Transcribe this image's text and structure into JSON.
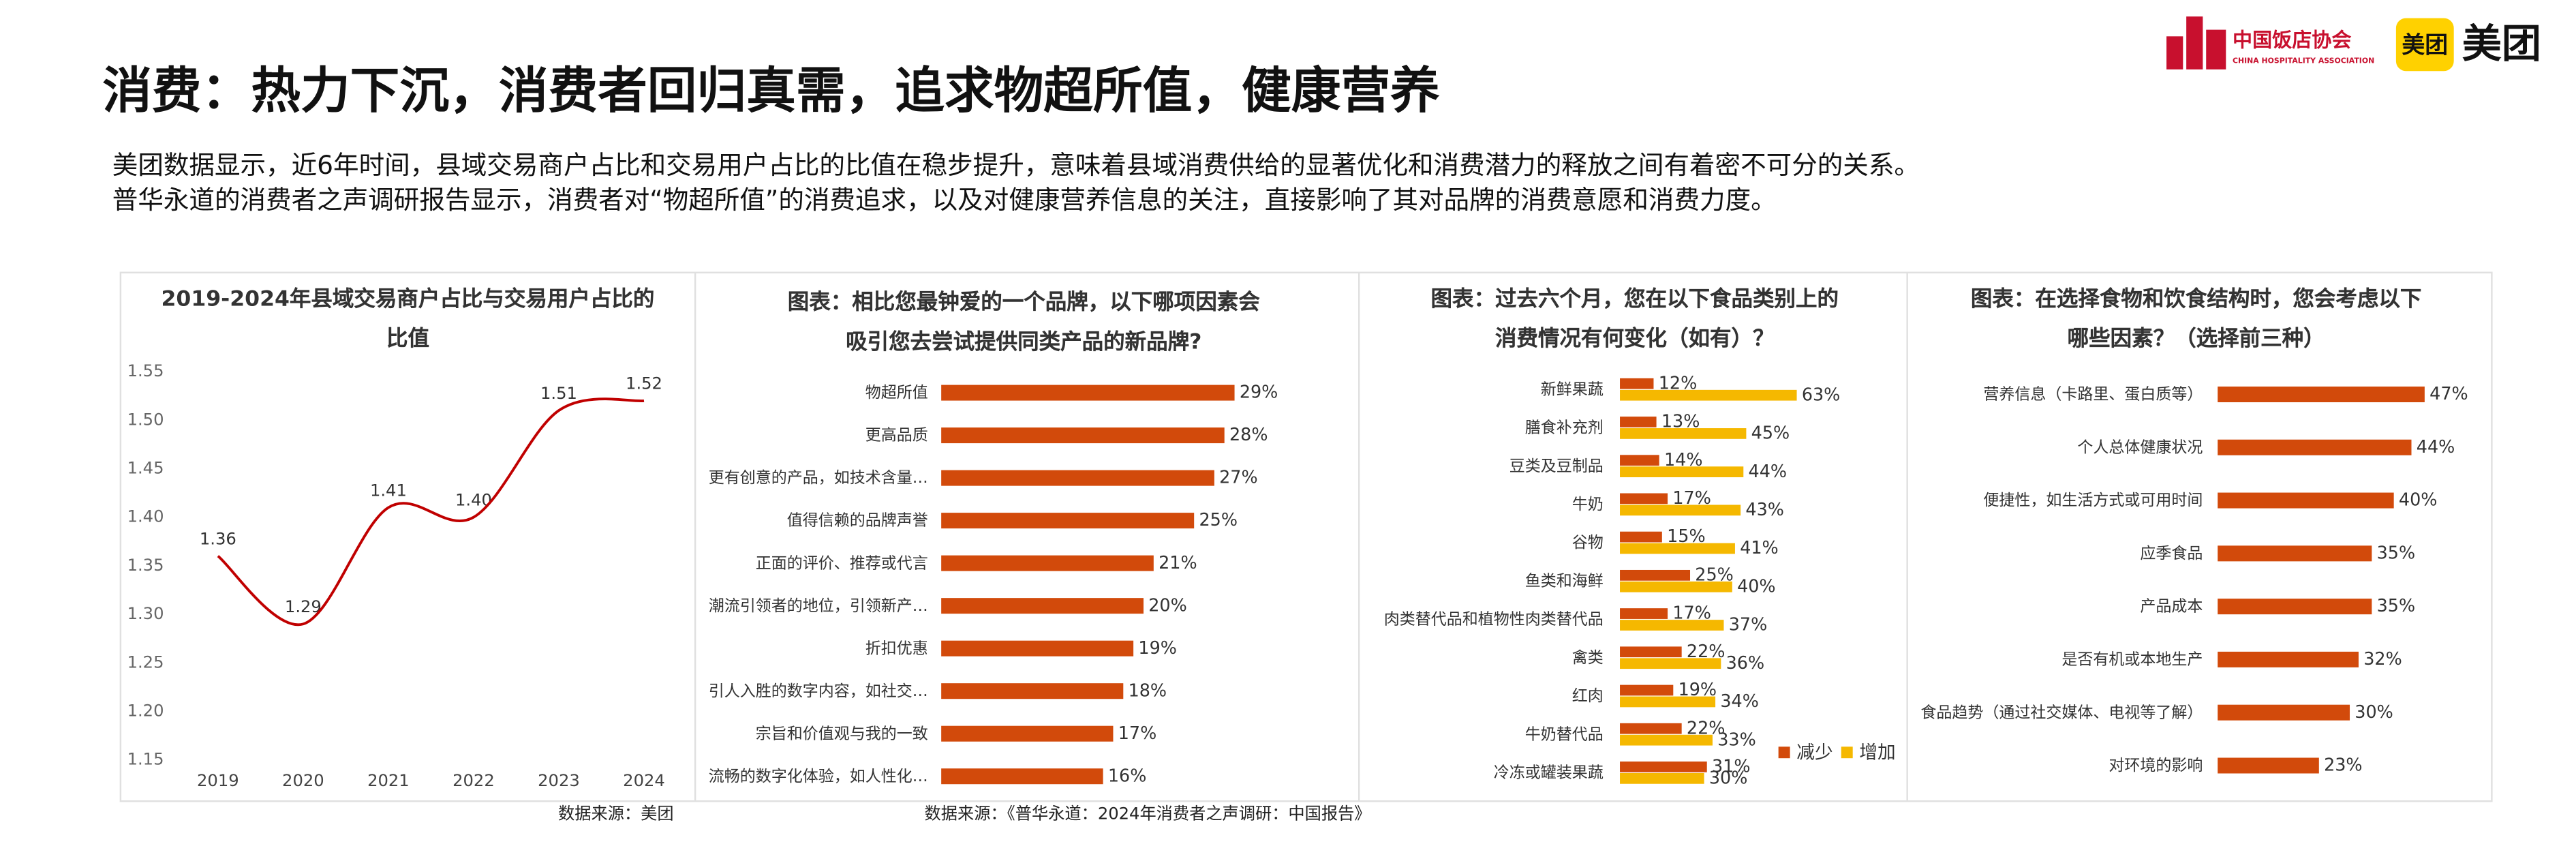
{
  "header": {
    "title": "消费：热力下沉，消费者回归真需，追求物超所值，健康营养",
    "lines": [
      "美团数据显示，近6年时间，县域交易商户占比和交易用户占比的比值在稳步提升，意味着县域消费供给的显著优化和消费潜力的释放之间有着密不可分的关系。",
      "普华永道的消费者之声调研报告显示，消费者对“物超所值”的消费追求，以及对健康营养信息的关注，直接影响了其对品牌的消费意愿和消费力度。"
    ],
    "logo_cn": "中国饭店协会",
    "logo_en": "CHINA HOSPITALITY ASSOCIATION",
    "meituan_badge": "美团",
    "meituan": "美团"
  },
  "chart_data": [
    {
      "type": "line",
      "title": "2019-2024年县域交易商户占比与交易用户占比的比值",
      "categories": [
        "2019",
        "2020",
        "2021",
        "2022",
        "2023",
        "2024"
      ],
      "values": [
        1.36,
        1.29,
        1.41,
        1.4,
        1.51,
        1.52
      ],
      "value_labels": [
        "1.36",
        "1.29",
        "1.41",
        "1.40",
        "1.51",
        "1.52"
      ],
      "color": "#c00000",
      "ylim": [
        1.15,
        1.55
      ],
      "yticks": [
        1.15,
        {
          "value": 1.2,
          "label": "1.20"
        },
        1.25,
        {
          "value": 1.3,
          "label": "1.30"
        },
        1.35,
        {
          "value": 1.4,
          "label": "1.40"
        },
        1.45,
        {
          "value": 1.5,
          "label": "1.50"
        },
        1.55
      ],
      "source": "数据来源：美团"
    },
    {
      "type": "bar",
      "orientation": "horizontal",
      "title": "图表：相比您最钟爱的一个品牌，以下哪项因素会吸引您去尝试提供同类产品的新品牌?",
      "categories": [
        "物超所值",
        "更高品质",
        "更有创意的产品，如技术含量…",
        "值得信赖的品牌声誉",
        "正面的评价、推荐或代言",
        "潮流引领者的地位，引领新产…",
        "折扣优惠",
        "引人入胜的数字内容，如社交…",
        "宗旨和价值观与我的一致",
        "流畅的数字化体验，如人性化…"
      ],
      "values": [
        29,
        28,
        27,
        25,
        21,
        20,
        19,
        18,
        17,
        16
      ],
      "value_labels": [
        "29%",
        "28%",
        "27%",
        "25%",
        "21%",
        "20%",
        "19%",
        "18%",
        "17%",
        "16%"
      ],
      "color": "#d24a0b",
      "xlim": [
        0,
        40
      ],
      "source": "数据来源：《普华永道：2024年消费者之声调研：中国报告》"
    },
    {
      "type": "bar",
      "orientation": "horizontal",
      "title": "图表：过去六个月，您在以下食品类别上的消费情况有何变化（如有）？",
      "categories": [
        "新鲜果蔬",
        "膳食补充剂",
        "豆类及豆制品",
        "牛奶",
        "谷物",
        "鱼类和海鲜",
        "肉类替代品和植物性肉类替代品",
        "禽类",
        "红肉",
        "牛奶替代品",
        "冷冻或罐装果蔬"
      ],
      "series": [
        {
          "name": "减少",
          "color": "#d24a0b",
          "values": [
            12,
            13,
            14,
            17,
            15,
            25,
            17,
            22,
            19,
            22,
            31
          ],
          "value_labels": [
            "12%",
            "13%",
            "14%",
            "17%",
            "15%",
            "25%",
            "17%",
            "22%",
            "19%",
            "22%",
            "31%"
          ]
        },
        {
          "name": "增加",
          "color": "#f5b800",
          "values": [
            63,
            45,
            44,
            43,
            41,
            40,
            37,
            36,
            34,
            33,
            30
          ],
          "value_labels": [
            "63%",
            "45%",
            "44%",
            "43%",
            "41%",
            "40%",
            "37%",
            "36%",
            "34%",
            "33%",
            "30%"
          ]
        }
      ],
      "xlim": [
        0,
        80
      ],
      "legend": "bottom-right"
    },
    {
      "type": "bar",
      "orientation": "horizontal",
      "title": "图表：在选择食物和饮食结构时，您会考虑以下哪些因素？（选择前三种）",
      "categories": [
        "营养信息（卡路里、蛋白质等）",
        "个人总体健康状况",
        "便捷性，如生活方式或可用时间",
        "应季食品",
        "产品成本",
        "是否有机或本地生产",
        "食品趋势（通过社交媒体、电视等了解）",
        "对环境的影响"
      ],
      "values": [
        47,
        44,
        40,
        35,
        35,
        32,
        30,
        23
      ],
      "value_labels": [
        "47%",
        "44%",
        "40%",
        "35%",
        "35%",
        "32%",
        "30%",
        "23%"
      ],
      "color": "#d24a0b",
      "xlim": [
        0,
        60
      ]
    }
  ]
}
